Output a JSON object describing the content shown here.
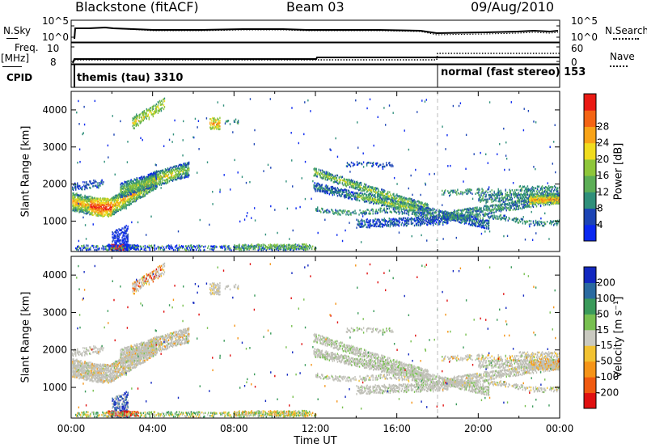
{
  "header": {
    "station": "Blackstone (fitACF)",
    "beam": "Beam 03",
    "date": "09/Aug/2010"
  },
  "top_panels": {
    "nsky_label": "N.Sky",
    "nsky_ticks": [
      "10^5",
      "10^0"
    ],
    "nsearch_label": "N.Search",
    "nsearch_ticks": [
      "10^5",
      "10^0"
    ],
    "freq_label_1": "Freq.",
    "freq_label_2": "[MHz]",
    "freq_ticks": [
      "10",
      "8"
    ],
    "nave_label": "Nave",
    "nave_ticks": [
      "60",
      "0"
    ],
    "cpid_label": "CPID",
    "cpid_segments": [
      "themis (tau) 3310",
      "normal (fast stereo) 153"
    ]
  },
  "chart_data": [
    {
      "type": "heatmap",
      "name": "power-panel",
      "ylabel": "Slant Range [km]",
      "ylim": [
        180,
        4500
      ],
      "yticks": [
        "1000",
        "2000",
        "3000",
        "4000"
      ],
      "xlim": [
        0,
        24
      ],
      "colorbar": {
        "label": "Power [dB]",
        "ticks": [
          "4",
          "8",
          "12",
          "16",
          "20",
          "24",
          "28"
        ],
        "colors": [
          "#0a28f0",
          "#1c44b4",
          "#2f8f7a",
          "#5cae56",
          "#8ec63a",
          "#f0dc1e",
          "#f8a318",
          "#f46414",
          "#ea1a14"
        ]
      }
    },
    {
      "type": "heatmap",
      "name": "velocity-panel",
      "ylabel": "Slant Range [km]",
      "ylim": [
        180,
        4500
      ],
      "yticks": [
        "1000",
        "2000",
        "3000",
        "4000"
      ],
      "xlim": [
        0,
        24
      ],
      "xlabel": "Time UT",
      "xticks": [
        "00:00",
        "04:00",
        "08:00",
        "12:00",
        "16:00",
        "20:00",
        "00:00"
      ],
      "colorbar": {
        "label": "Velocity [m s⁻¹]",
        "ticks": [
          "200",
          "100",
          "50",
          "15",
          "-15",
          "-50",
          "-100",
          "-200"
        ],
        "colors": [
          "#1228c0",
          "#2a6aa0",
          "#3a9a5a",
          "#78c050",
          "#c9c9c0",
          "#f2c232",
          "#f59418",
          "#f05a10",
          "#e01010"
        ],
        "ground_scatter_color": "#c0c0b8"
      }
    }
  ]
}
